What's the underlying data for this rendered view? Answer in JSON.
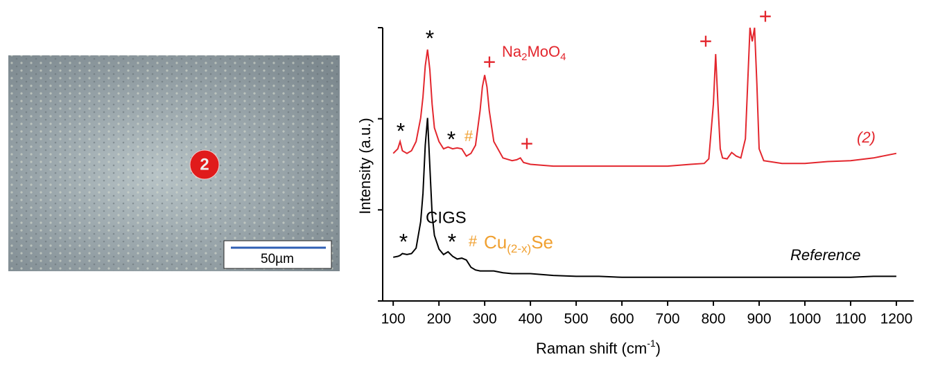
{
  "image": {
    "marker": "2",
    "scale_label": "50µm"
  },
  "chart_data": {
    "type": "line",
    "x_label": {
      "text": "Raman shift (cm",
      "sup": "-1",
      "tail": ")"
    },
    "y_label": "Intensity (a.u.)",
    "xlim": [
      77,
      1238
    ],
    "xticks": [
      100,
      200,
      300,
      400,
      500,
      600,
      700,
      800,
      900,
      1000,
      1100,
      1200
    ],
    "ylim": [
      0,
      3
    ],
    "yticks": [
      0,
      1,
      2,
      3
    ],
    "x": [
      100,
      110,
      115,
      120,
      130,
      140,
      150,
      160,
      165,
      170,
      175,
      180,
      185,
      190,
      200,
      210,
      220,
      230,
      240,
      250,
      260,
      270,
      280,
      290,
      295,
      300,
      305,
      310,
      320,
      340,
      360,
      370,
      378,
      385,
      400,
      450,
      500,
      550,
      600,
      650,
      700,
      750,
      780,
      790,
      800,
      805,
      810,
      815,
      820,
      830,
      840,
      850,
      860,
      870,
      875,
      880,
      885,
      890,
      895,
      900,
      910,
      950,
      1000,
      1050,
      1100,
      1150,
      1200
    ],
    "series": [
      {
        "color": "#e3262d",
        "values": [
          1.62,
          1.67,
          1.75,
          1.65,
          1.62,
          1.65,
          1.75,
          2.01,
          2.24,
          2.58,
          2.76,
          2.54,
          2.16,
          1.9,
          1.75,
          1.67,
          1.69,
          1.67,
          1.68,
          1.67,
          1.59,
          1.62,
          1.71,
          2.09,
          2.35,
          2.48,
          2.35,
          2.09,
          1.75,
          1.57,
          1.54,
          1.55,
          1.57,
          1.52,
          1.5,
          1.48,
          1.48,
          1.48,
          1.48,
          1.48,
          1.48,
          1.5,
          1.51,
          1.56,
          2.16,
          2.71,
          2.16,
          1.67,
          1.57,
          1.56,
          1.63,
          1.59,
          1.57,
          1.78,
          2.39,
          3.0,
          2.85,
          3.0,
          2.39,
          1.67,
          1.54,
          1.51,
          1.51,
          1.53,
          1.54,
          1.57,
          1.62
        ]
      },
      {
        "color": "#000000",
        "values": [
          0.48,
          0.49,
          0.5,
          0.52,
          0.51,
          0.52,
          0.58,
          0.87,
          1.18,
          1.71,
          2.01,
          1.48,
          0.95,
          0.72,
          0.57,
          0.51,
          0.54,
          0.49,
          0.46,
          0.47,
          0.45,
          0.37,
          0.34,
          0.33,
          0.33,
          0.33,
          0.33,
          0.33,
          0.33,
          0.31,
          0.3,
          0.3,
          0.3,
          0.3,
          0.3,
          0.28,
          0.27,
          0.27,
          0.26,
          0.26,
          0.26,
          0.26,
          0.26,
          0.26,
          0.26,
          0.26,
          0.26,
          0.26,
          0.26,
          0.26,
          0.26,
          0.26,
          0.26,
          0.26,
          0.26,
          0.26,
          0.26,
          0.26,
          0.26,
          0.26,
          0.26,
          0.26,
          0.26,
          0.26,
          0.26,
          0.27,
          0.27
        ]
      }
    ],
    "annotations": [
      "*",
      "+",
      "#",
      "Na",
      "2",
      "MoO",
      "4",
      "CIGS",
      "Cu",
      "(2-x)",
      "Se",
      "(2)",
      "Reference"
    ]
  }
}
